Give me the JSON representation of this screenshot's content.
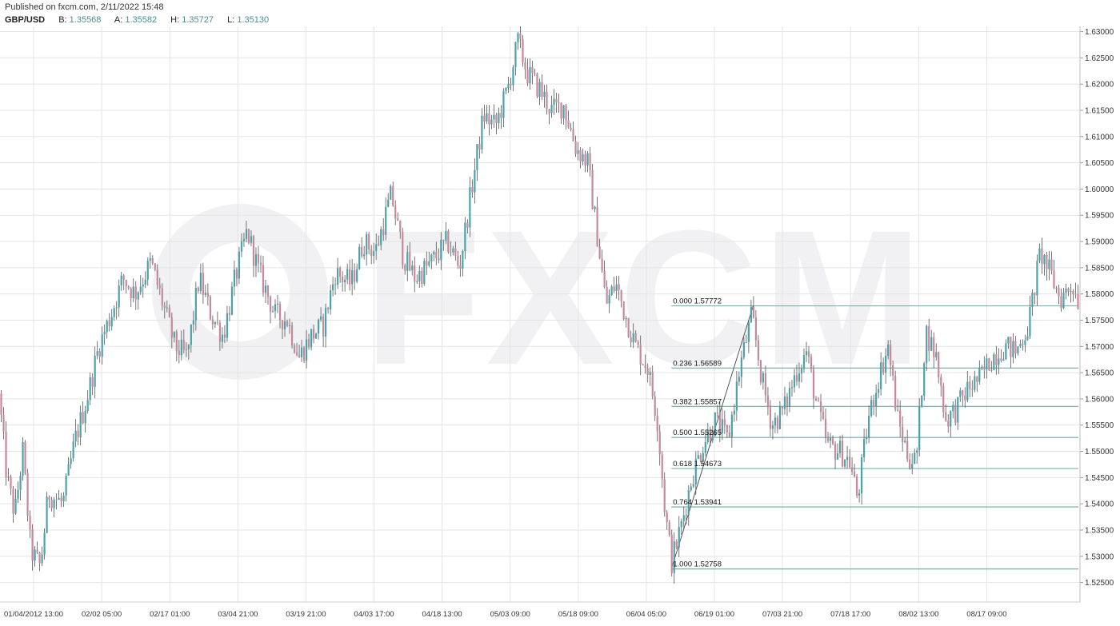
{
  "header": {
    "published": "Published on fxcm.com, 2/11/2022 15:48",
    "symbol": "GBP/USD",
    "bid_label": "B:",
    "bid": "1.35568",
    "ask_label": "A:",
    "ask": "1.35582",
    "high_label": "H:",
    "high": "1.35727",
    "low_label": "L:",
    "low": "1.35130"
  },
  "watermark": {
    "text": "FXCM"
  },
  "colors": {
    "bull": "#4aa3a8",
    "bear": "#c9879a",
    "fib": "#6aa9a6",
    "grid": "#e4e4e4"
  },
  "chart_data": {
    "type": "candlestick",
    "title": "",
    "ylim": [
      1.5225,
      1.631
    ],
    "y_ticks": [
      "1.52500",
      "1.53000",
      "1.53500",
      "1.54000",
      "1.54500",
      "1.55000",
      "1.55500",
      "1.56000",
      "1.56500",
      "1.57000",
      "1.57500",
      "1.58000",
      "1.58500",
      "1.59000",
      "1.59500",
      "1.60000",
      "1.60500",
      "1.61000",
      "1.61500",
      "1.62000",
      "1.62500",
      "1.63000"
    ],
    "x_ticks": [
      "01/04/2012 13:00",
      "02/02 05:00",
      "02/17 01:00",
      "03/04 21:00",
      "03/19 21:00",
      "04/03 17:00",
      "04/18 13:00",
      "05/03 09:00",
      "05/18 09:00",
      "06/04 05:00",
      "06/19 01:00",
      "07/03 21:00",
      "07/18 17:00",
      "08/02 13:00",
      "08/17 09:00"
    ],
    "price_path": [
      {
        "i": 0,
        "p": 1.561
      },
      {
        "i": 10,
        "p": 1.545
      },
      {
        "i": 20,
        "p": 1.538
      },
      {
        "i": 30,
        "p": 1.55
      },
      {
        "i": 40,
        "p": 1.531
      },
      {
        "i": 52,
        "p": 1.528
      },
      {
        "i": 62,
        "p": 1.542
      },
      {
        "i": 80,
        "p": 1.54
      },
      {
        "i": 95,
        "p": 1.552
      },
      {
        "i": 110,
        "p": 1.56
      },
      {
        "i": 125,
        "p": 1.57
      },
      {
        "i": 140,
        "p": 1.576
      },
      {
        "i": 155,
        "p": 1.583
      },
      {
        "i": 170,
        "p": 1.58
      },
      {
        "i": 190,
        "p": 1.586
      },
      {
        "i": 205,
        "p": 1.578
      },
      {
        "i": 220,
        "p": 1.57
      },
      {
        "i": 235,
        "p": 1.568
      },
      {
        "i": 250,
        "p": 1.583
      },
      {
        "i": 265,
        "p": 1.576
      },
      {
        "i": 280,
        "p": 1.572
      },
      {
        "i": 295,
        "p": 1.583
      },
      {
        "i": 310,
        "p": 1.592
      },
      {
        "i": 325,
        "p": 1.584
      },
      {
        "i": 345,
        "p": 1.576
      },
      {
        "i": 360,
        "p": 1.575
      },
      {
        "i": 375,
        "p": 1.568
      },
      {
        "i": 390,
        "p": 1.572
      },
      {
        "i": 405,
        "p": 1.574
      },
      {
        "i": 420,
        "p": 1.584
      },
      {
        "i": 440,
        "p": 1.582
      },
      {
        "i": 455,
        "p": 1.59
      },
      {
        "i": 470,
        "p": 1.588
      },
      {
        "i": 490,
        "p": 1.599
      },
      {
        "i": 505,
        "p": 1.587
      },
      {
        "i": 520,
        "p": 1.583
      },
      {
        "i": 540,
        "p": 1.586
      },
      {
        "i": 560,
        "p": 1.59
      },
      {
        "i": 575,
        "p": 1.585
      },
      {
        "i": 590,
        "p": 1.6
      },
      {
        "i": 605,
        "p": 1.614
      },
      {
        "i": 620,
        "p": 1.612
      },
      {
        "i": 635,
        "p": 1.619
      },
      {
        "i": 648,
        "p": 1.628
      },
      {
        "i": 660,
        "p": 1.622
      },
      {
        "i": 675,
        "p": 1.619
      },
      {
        "i": 690,
        "p": 1.615
      },
      {
        "i": 705,
        "p": 1.616
      },
      {
        "i": 720,
        "p": 1.608
      },
      {
        "i": 735,
        "p": 1.605
      },
      {
        "i": 748,
        "p": 1.59
      },
      {
        "i": 758,
        "p": 1.578
      },
      {
        "i": 770,
        "p": 1.582
      },
      {
        "i": 782,
        "p": 1.576
      },
      {
        "i": 795,
        "p": 1.57
      },
      {
        "i": 810,
        "p": 1.566
      },
      {
        "i": 822,
        "p": 1.556
      },
      {
        "i": 832,
        "p": 1.538
      },
      {
        "i": 840,
        "p": 1.529
      },
      {
        "i": 852,
        "p": 1.536
      },
      {
        "i": 865,
        "p": 1.545
      },
      {
        "i": 880,
        "p": 1.552
      },
      {
        "i": 895,
        "p": 1.556
      },
      {
        "i": 910,
        "p": 1.552
      },
      {
        "i": 925,
        "p": 1.566
      },
      {
        "i": 940,
        "p": 1.576
      },
      {
        "i": 952,
        "p": 1.564
      },
      {
        "i": 965,
        "p": 1.555
      },
      {
        "i": 980,
        "p": 1.558
      },
      {
        "i": 995,
        "p": 1.565
      },
      {
        "i": 1008,
        "p": 1.569
      },
      {
        "i": 1022,
        "p": 1.558
      },
      {
        "i": 1035,
        "p": 1.551
      },
      {
        "i": 1050,
        "p": 1.55
      },
      {
        "i": 1062,
        "p": 1.548
      },
      {
        "i": 1072,
        "p": 1.541
      },
      {
        "i": 1085,
        "p": 1.556
      },
      {
        "i": 1098,
        "p": 1.564
      },
      {
        "i": 1110,
        "p": 1.57
      },
      {
        "i": 1122,
        "p": 1.556
      },
      {
        "i": 1135,
        "p": 1.549
      },
      {
        "i": 1145,
        "p": 1.548
      },
      {
        "i": 1157,
        "p": 1.573
      },
      {
        "i": 1170,
        "p": 1.568
      },
      {
        "i": 1182,
        "p": 1.556
      },
      {
        "i": 1195,
        "p": 1.558
      },
      {
        "i": 1210,
        "p": 1.562
      },
      {
        "i": 1225,
        "p": 1.564
      },
      {
        "i": 1240,
        "p": 1.568
      },
      {
        "i": 1255,
        "p": 1.57
      },
      {
        "i": 1270,
        "p": 1.569
      },
      {
        "i": 1285,
        "p": 1.574
      },
      {
        "i": 1300,
        "p": 1.588
      },
      {
        "i": 1312,
        "p": 1.584
      },
      {
        "i": 1325,
        "p": 1.579
      },
      {
        "i": 1340,
        "p": 1.582
      },
      {
        "i": 1346,
        "p": 1.579
      }
    ],
    "fib_swing_line": {
      "from": {
        "i": 838,
        "p": 1.52758
      },
      "to": {
        "i": 940,
        "p": 1.57772
      }
    },
    "fibonacci": [
      {
        "label": "0.000 1.57772",
        "value": 1.57772
      },
      {
        "label": "0.236 1.56589",
        "value": 1.56589
      },
      {
        "label": "0.382 1.55857",
        "value": 1.55857
      },
      {
        "label": "0.500 1.55265",
        "value": 1.55265
      },
      {
        "label": "0.618 1.54673",
        "value": 1.54673
      },
      {
        "label": "0.764 1.53941",
        "value": 1.53941
      },
      {
        "label": "1.000 1.52758",
        "value": 1.52758
      }
    ]
  }
}
